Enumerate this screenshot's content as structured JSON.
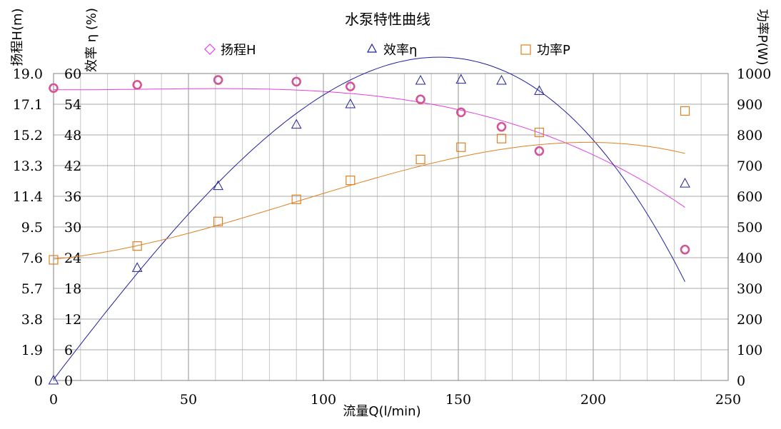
{
  "chart_data": {
    "type": "scatter",
    "title": "水泵特性曲线",
    "xlabel": "流量Q(l/min)",
    "ylabel_head": "扬程H(m)",
    "ylabel_eff": "效率 η (%)",
    "ylabel_power": "功率P(W)",
    "xlim": [
      0,
      250
    ],
    "x_ticks": [
      0,
      50,
      100,
      150,
      200,
      250
    ],
    "head_ticks": [
      "0",
      "1.9",
      "3.8",
      "5.7",
      "7.6",
      "9.5",
      "11.4",
      "13.3",
      "15.2",
      "17.1",
      "19.0"
    ],
    "head_lim": [
      0,
      19
    ],
    "eff_ticks": [
      0,
      6,
      12,
      18,
      24,
      30,
      36,
      42,
      48,
      54,
      60
    ],
    "eff_lim": [
      0,
      60
    ],
    "power_ticks": [
      0,
      100,
      200,
      300,
      400,
      500,
      600,
      700,
      800,
      900,
      1000
    ],
    "power_lim": [
      0,
      1000
    ],
    "grid": true,
    "series": [
      {
        "name": "扬程H",
        "axis": "head",
        "color": "#e040e0",
        "marker": "diamond",
        "x": [
          0,
          31,
          61,
          90,
          110,
          136,
          151,
          166,
          180,
          234
        ],
        "values": [
          18.1,
          18.3,
          18.6,
          18.5,
          18.2,
          17.4,
          16.6,
          15.7,
          14.2,
          8.1
        ],
        "fit": [
          18.0,
          -0.0014,
          0.0001,
          -9.7e-07
        ]
      },
      {
        "name": "效率η",
        "axis": "eff",
        "color": "#2020a0",
        "marker": "triangle",
        "x": [
          0,
          31,
          61,
          90,
          110,
          136,
          151,
          166,
          180,
          234
        ],
        "values": [
          0,
          22,
          38,
          50,
          54,
          58.6,
          58.8,
          58.6,
          56.6,
          38.5
        ],
        "fit": [
          0.2,
          0.69,
          -0.0004,
          -9.4e-06
        ]
      },
      {
        "name": "功率P",
        "axis": "power",
        "color": "#e08020",
        "marker": "square",
        "x": [
          0,
          31,
          61,
          90,
          110,
          136,
          151,
          166,
          180,
          234
        ],
        "values": [
          393,
          438,
          518,
          590,
          652,
          720,
          760,
          788,
          808,
          878
        ],
        "fit": [
          395.3,
          0.848,
          0.02057,
          -7.65e-05
        ]
      }
    ],
    "head_overlay_marker": {
      "color": "#d06060",
      "marker": "circle"
    },
    "legend_position": "top"
  }
}
